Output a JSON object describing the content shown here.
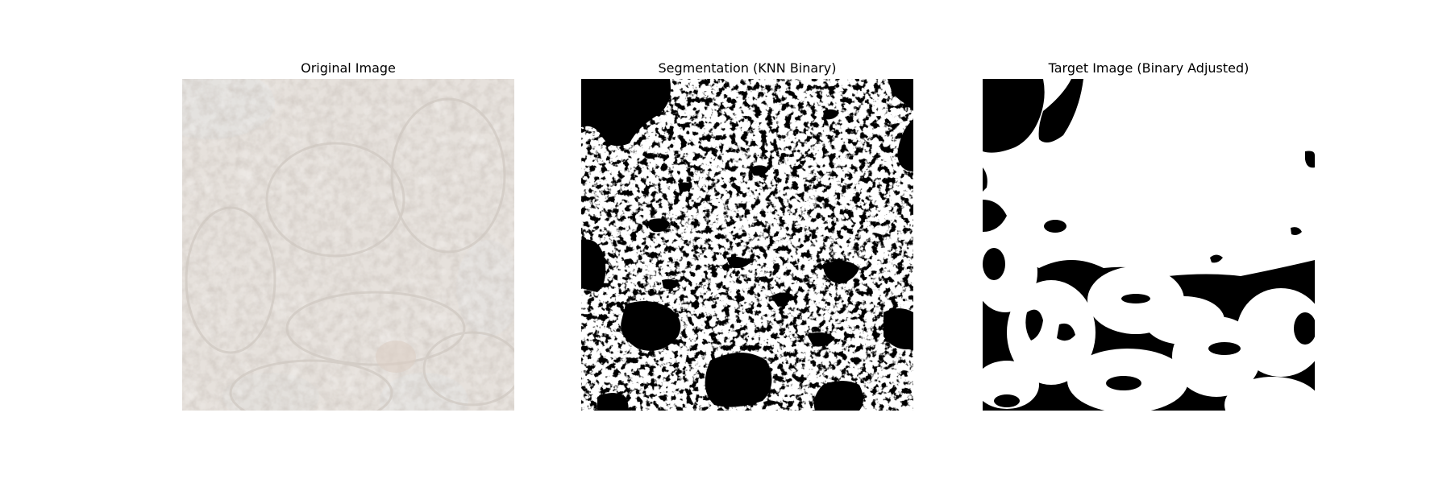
{
  "figure": {
    "panels": [
      {
        "title": "Original Image"
      },
      {
        "title": "Segmentation (KNN Binary)"
      },
      {
        "title": "Target Image (Binary Adjusted)"
      }
    ]
  },
  "colors": {
    "background": "#ffffff",
    "original_tissue": "#e6e1dc",
    "original_lumen": "#e4e2df",
    "mask_foreground": "#ffffff",
    "mask_background": "#000000"
  }
}
